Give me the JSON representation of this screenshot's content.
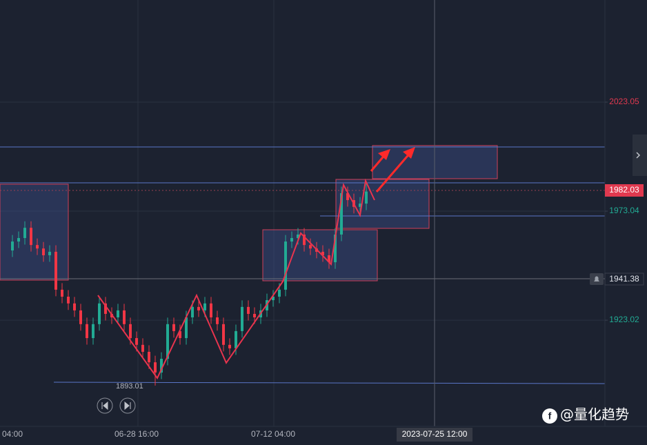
{
  "chart_data": {
    "type": "candlestick",
    "categories": [
      "04:00",
      null,
      null,
      null,
      null,
      null,
      null,
      null,
      null,
      null,
      null,
      null,
      null,
      null,
      null,
      null,
      null,
      null,
      null,
      null,
      "06-28 16:00",
      null,
      null,
      null,
      null,
      null,
      null,
      null,
      null,
      null,
      null,
      null,
      null,
      null,
      null,
      null,
      null,
      null,
      null,
      null,
      null,
      null,
      "07-12 04:00",
      null,
      null,
      null,
      null,
      null,
      null,
      null,
      null,
      null,
      null,
      null,
      null,
      null,
      null,
      null,
      null,
      null,
      null,
      null,
      null,
      null,
      null,
      null,
      null,
      null,
      "2023-07-25 12:00"
    ],
    "open": [
      1955.0,
      1959.1,
      1960.7,
      1965.4,
      1957.5,
      1955.9,
      1952.8,
      1954.4,
      1937.0,
      1933.8,
      1930.7,
      1927.5,
      1921.2,
      1914.8,
      1921.2,
      1930.7,
      1925.9,
      1924.3,
      1927.5,
      1921.2,
      1914.8,
      1911.7,
      1908.5,
      1903.7,
      1899.0,
      1905.3,
      1921.2,
      1918.0,
      1914.8,
      1924.3,
      1929.1,
      1927.5,
      1930.7,
      1924.3,
      1921.2,
      1911.7,
      1910.1,
      1918.0,
      1929.1,
      1925.9,
      1924.3,
      1927.5,
      1932.2,
      1933.8,
      1937.0,
      1959.1,
      1960.7,
      1962.3,
      1957.5,
      1955.9,
      1954.4,
      1952.8,
      1949.6,
      1962.3,
      1981.3,
      1978.1,
      1975.0,
      1976.5,
      null,
      null,
      null,
      null,
      null,
      null,
      null,
      null,
      null,
      null,
      null
    ],
    "high": [
      1962.1,
      1963.7,
      1968.4,
      1968.4,
      1960.5,
      1958.9,
      1957.4,
      1957.4,
      1940.0,
      1936.8,
      1933.7,
      1930.5,
      1924.2,
      1924.2,
      1933.7,
      1933.7,
      1928.9,
      1930.5,
      1930.5,
      1924.2,
      1917.8,
      1914.7,
      1911.5,
      1906.7,
      1908.3,
      1924.2,
      1924.2,
      1921.0,
      1927.3,
      1932.1,
      1932.1,
      1933.7,
      1933.7,
      1927.3,
      1924.2,
      1914.7,
      1921.0,
      1932.1,
      1932.1,
      1928.9,
      1930.5,
      1935.2,
      1936.8,
      1940.0,
      1962.1,
      1963.7,
      1965.3,
      1965.3,
      1960.5,
      1958.9,
      1957.4,
      1955.8,
      1965.3,
      1984.3,
      1984.3,
      1981.1,
      1979.5,
      1986.0,
      null,
      null,
      null,
      null,
      null,
      null,
      null,
      null,
      null,
      null,
      null
    ],
    "low": [
      1952.0,
      1956.1,
      1957.7,
      1954.5,
      1952.9,
      1949.8,
      1949.8,
      1934.0,
      1930.8,
      1927.7,
      1924.5,
      1918.2,
      1911.8,
      1911.8,
      1918.2,
      1922.9,
      1921.3,
      1921.3,
      1918.2,
      1911.8,
      1908.7,
      1905.5,
      1900.7,
      1893.01,
      1896.0,
      1902.3,
      1915.0,
      1911.8,
      1911.8,
      1921.3,
      1924.5,
      1924.5,
      1921.3,
      1918.2,
      1908.7,
      1907.1,
      1907.1,
      1915.0,
      1922.9,
      1921.3,
      1921.3,
      1924.5,
      1929.2,
      1930.8,
      1934.0,
      1956.1,
      1957.7,
      1954.5,
      1952.9,
      1951.4,
      1949.8,
      1946.6,
      1946.6,
      1959.3,
      1975.1,
      1972.0,
      1972.0,
      1973.5,
      null,
      null,
      null,
      null,
      null,
      null,
      null,
      null,
      null,
      null,
      null
    ],
    "close": [
      1959.1,
      1960.7,
      1965.4,
      1957.5,
      1955.9,
      1952.8,
      1954.4,
      1937.0,
      1933.8,
      1930.7,
      1927.5,
      1921.2,
      1914.8,
      1921.2,
      1930.7,
      1925.9,
      1924.3,
      1927.5,
      1921.2,
      1914.8,
      1911.7,
      1908.5,
      1903.7,
      1899.0,
      1905.3,
      1921.2,
      1918.0,
      1914.8,
      1924.3,
      1929.1,
      1927.5,
      1930.7,
      1924.3,
      1921.2,
      1911.7,
      1910.1,
      1918.0,
      1929.1,
      1925.9,
      1924.3,
      1927.5,
      1932.2,
      1933.8,
      1937.0,
      1959.1,
      1960.7,
      1962.3,
      1957.5,
      1955.9,
      1954.4,
      1952.8,
      1949.6,
      1962.3,
      1981.3,
      1978.1,
      1975.0,
      1976.5,
      1982.03,
      null,
      null,
      null,
      null,
      null,
      null,
      null,
      null,
      null,
      null,
      null
    ],
    "colors": {
      "up": "#22ab94",
      "down": "#f23645"
    },
    "ylim": [
      1874.3,
      2069.9
    ],
    "yticks": [
      1923.02,
      1973.04,
      2023.05
    ],
    "grid": true,
    "annotations": {
      "low_label": "1893.01",
      "last_price": 1982.03,
      "alert_price": 1941.38
    }
  },
  "watermark": "@量化趋势"
}
